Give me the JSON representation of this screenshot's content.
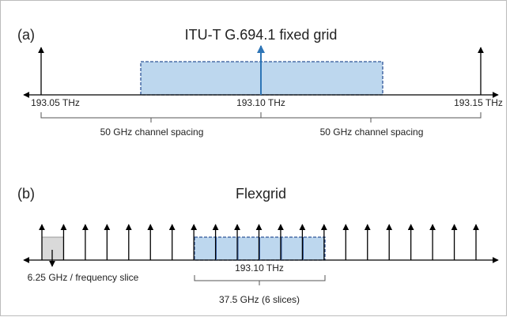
{
  "panel_a": {
    "label": "(a)",
    "title": "ITU-T G.694.1 fixed grid",
    "frequencies": [
      "193.05 THz",
      "193.10 THz",
      "193.15 THz"
    ],
    "spacings": [
      "50 GHz channel spacing",
      "50 GHz channel spacing"
    ]
  },
  "panel_b": {
    "label": "(b)",
    "title": "Flexgrid",
    "slice_label": "6.25 GHz / frequency slice",
    "center_label": "193.10 THz",
    "width_label": "37.5 GHz (6 slices)"
  }
}
